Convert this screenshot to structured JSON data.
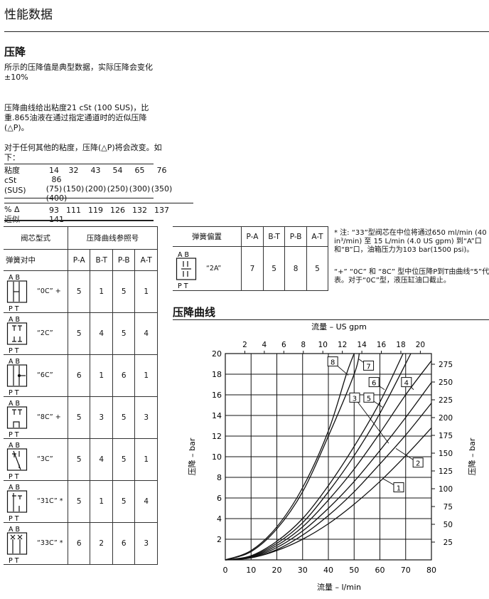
{
  "page_title": "性能数据",
  "section_heading": "压降",
  "paragraphs": [
    "所示的压降值是典型数据，实际压降会变化±10%",
    "压降曲线给出粘度21 cSt (100 SUS)，比重.865油液在通过指定通道时的近似压降(△P)。",
    "对于任何其他的粘度，压降(△P)将会改变。如下："
  ],
  "viscosity_table": {
    "row_label_1": [
      "粘度",
      "cSt",
      "(SUS)"
    ],
    "cst": [
      "14",
      "32",
      "43",
      "54",
      "65",
      "76",
      "86"
    ],
    "sus": [
      "(75)",
      "(150)",
      "(200)",
      "(250)",
      "(300)",
      "(350)",
      "(400)"
    ],
    "row_label_2": [
      "% Δ",
      "近似"
    ],
    "percent": [
      "93",
      "111",
      "119",
      "126",
      "132",
      "137",
      "141"
    ]
  },
  "spool_table": {
    "header_type": "阀芯型式",
    "header_ref": "压降曲线参照号",
    "subheader": "弹簧对中",
    "columns": [
      "P-A",
      "B-T",
      "P-B",
      "A-T"
    ],
    "port_top": "A B",
    "port_bottom": "P T",
    "rows": [
      {
        "code": "“0C” +",
        "values": [
          "5",
          "1",
          "5",
          "1"
        ]
      },
      {
        "code": "“2C”",
        "values": [
          "5",
          "4",
          "5",
          "4"
        ]
      },
      {
        "code": "“6C”",
        "values": [
          "6",
          "1",
          "6",
          "1"
        ]
      },
      {
        "code": "“8C” +",
        "values": [
          "5",
          "3",
          "5",
          "3"
        ]
      },
      {
        "code": "“3C”",
        "values": [
          "5",
          "4",
          "5",
          "1"
        ]
      },
      {
        "code": "“31C” *",
        "values": [
          "5",
          "1",
          "5",
          "4"
        ]
      },
      {
        "code": "“33C” *",
        "values": [
          "6",
          "2",
          "6",
          "3"
        ]
      }
    ]
  },
  "offset_table": {
    "header": "弹簧偏置",
    "columns": [
      "P-A",
      "B-T",
      "P-B",
      "A-T"
    ],
    "rows": [
      {
        "code": "“2A”",
        "values": [
          "7",
          "5",
          "8",
          "5"
        ]
      }
    ]
  },
  "notes": [
    "* 注: “33”型阀芯在中位将通过650 ml/min (40 in³/min) 至 15 L/min (4.0 US gpm) 到“A”口和“B”口，油箱压力为103 bar(1500 psi)。",
    "“+” “0C” 和 “8C” 型中位压降P到T由曲线“5”代表。对于“0C”型，液压缸油口截止。"
  ],
  "chart_heading": "压降曲线",
  "chart_data": {
    "type": "line",
    "xlabel": "流量 – l/min",
    "x2label": "流量 – US gpm",
    "ylabel": "压降 – bar",
    "y2label": "压降 – bar",
    "xlim": [
      0,
      80
    ],
    "ylim": [
      0,
      20
    ],
    "x_ticks": [
      0,
      10,
      20,
      30,
      40,
      50,
      60,
      70,
      80
    ],
    "y_ticks": [
      2,
      4,
      6,
      8,
      10,
      12,
      14,
      16,
      18,
      20
    ],
    "x2_ticks": [
      2,
      4,
      6,
      8,
      10,
      12,
      14,
      16,
      18,
      20
    ],
    "y2_ticks": [
      25,
      50,
      75,
      100,
      125,
      150,
      175,
      200,
      225,
      250,
      275
    ],
    "grid": true,
    "series": [
      {
        "name": "1",
        "points": [
          [
            0,
            0
          ],
          [
            10,
            0.2
          ],
          [
            20,
            0.9
          ],
          [
            30,
            2
          ],
          [
            40,
            3.5
          ],
          [
            50,
            5.4
          ],
          [
            60,
            7.6
          ],
          [
            70,
            10.1
          ],
          [
            80,
            12.8
          ]
        ]
      },
      {
        "name": "2",
        "points": [
          [
            0,
            0
          ],
          [
            10,
            0.2
          ],
          [
            20,
            1.0
          ],
          [
            30,
            2.4
          ],
          [
            40,
            4.3
          ],
          [
            50,
            6.6
          ],
          [
            60,
            9.3
          ],
          [
            70,
            12.1
          ],
          [
            80,
            15.2
          ]
        ]
      },
      {
        "name": "3",
        "points": [
          [
            0,
            0
          ],
          [
            10,
            0.25
          ],
          [
            20,
            1.2
          ],
          [
            30,
            2.8
          ],
          [
            40,
            5
          ],
          [
            50,
            7.6
          ],
          [
            60,
            10.6
          ],
          [
            70,
            13.8
          ],
          [
            80,
            17.2
          ]
        ]
      },
      {
        "name": "4",
        "points": [
          [
            0,
            0
          ],
          [
            10,
            0.3
          ],
          [
            20,
            1.4
          ],
          [
            30,
            3.2
          ],
          [
            40,
            5.8
          ],
          [
            50,
            8.8
          ],
          [
            60,
            12.3
          ],
          [
            70,
            16
          ],
          [
            80,
            19.3
          ]
        ]
      },
      {
        "name": "5",
        "points": [
          [
            0,
            0
          ],
          [
            10,
            0.35
          ],
          [
            20,
            1.6
          ],
          [
            30,
            3.6
          ],
          [
            40,
            6.6
          ],
          [
            50,
            10.1
          ],
          [
            60,
            14.2
          ],
          [
            72,
            20
          ]
        ]
      },
      {
        "name": "6",
        "points": [
          [
            0,
            0
          ],
          [
            10,
            0.4
          ],
          [
            20,
            1.8
          ],
          [
            30,
            4
          ],
          [
            40,
            7.2
          ],
          [
            50,
            11
          ],
          [
            60,
            15.3
          ],
          [
            69,
            20
          ]
        ]
      },
      {
        "name": "7",
        "points": [
          [
            0,
            0
          ],
          [
            10,
            0.8
          ],
          [
            20,
            3
          ],
          [
            30,
            6.6
          ],
          [
            40,
            12
          ],
          [
            50,
            18
          ],
          [
            52,
            20
          ]
        ]
      },
      {
        "name": "8",
        "points": [
          [
            0,
            0
          ],
          [
            10,
            0.9
          ],
          [
            20,
            3.2
          ],
          [
            30,
            7
          ],
          [
            40,
            12.5
          ],
          [
            47,
            18
          ],
          [
            50,
            20
          ]
        ]
      }
    ]
  }
}
